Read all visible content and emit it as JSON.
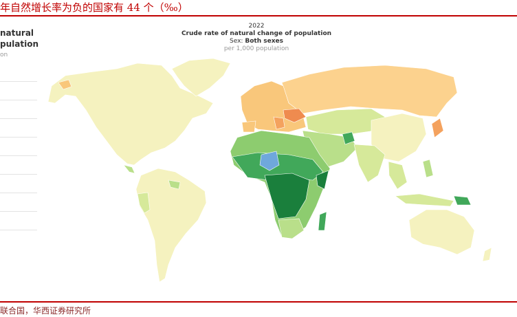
{
  "header": {
    "title": "年自然增长率为负的国家有 44 个（‰）"
  },
  "left_panel": {
    "lines": [
      "natural",
      "pulation"
    ],
    "note": "on"
  },
  "map": {
    "year": "2022",
    "title": "Crude rate of natural change of population",
    "subtitle_label": "Sex:",
    "subtitle_value": "Both sexes",
    "unit": "per 1,000 population"
  },
  "footer": {
    "source": "联合国，华西证券研究所"
  }
}
